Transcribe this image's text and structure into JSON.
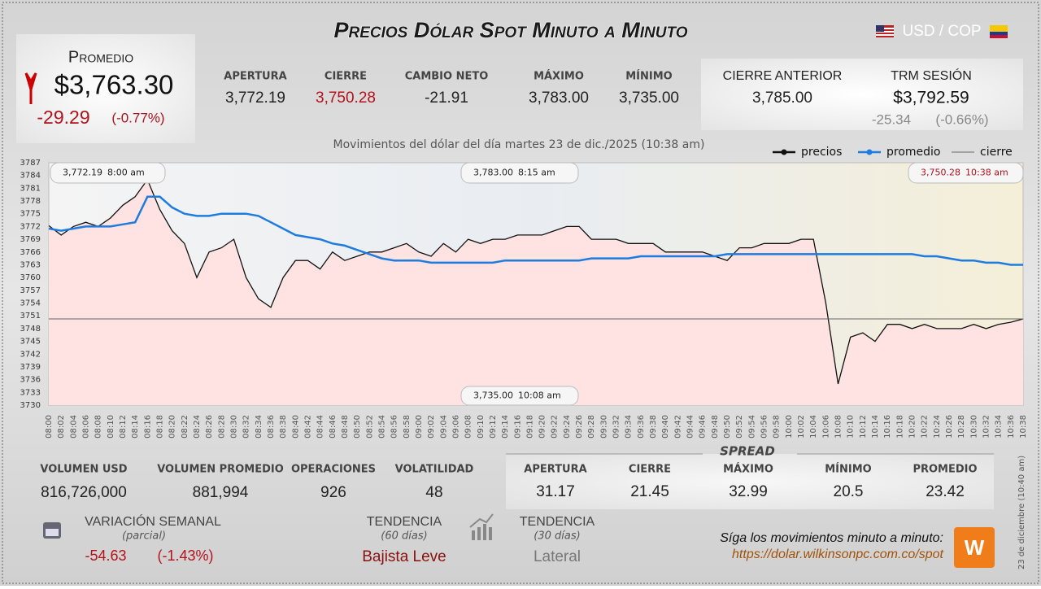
{
  "header": {
    "title": "Precios Dólar Spot Minuto a Minuto",
    "pair": "USD / COP"
  },
  "promedio": {
    "label": "Promedio",
    "value": "$3,763.30",
    "change": "-29.29",
    "percent": "(-0.77%)"
  },
  "stats": [
    {
      "label": "APERTURA",
      "value": "3,772.19"
    },
    {
      "label": "CIERRE",
      "value": "3,750.28"
    },
    {
      "label": "CAMBIO NETO",
      "value": "-21.91"
    },
    {
      "label": "MÁXIMO",
      "value": "3,783.00"
    },
    {
      "label": "MÍNIMO",
      "value": "3,735.00"
    }
  ],
  "previous_close": {
    "label": "CIERRE ANTERIOR",
    "value": "3,785.00"
  },
  "trm": {
    "label": "TRM SESIÓN",
    "value": "$3,792.59",
    "change": "-25.34",
    "percent": "(-0.66%)"
  },
  "chart_data": {
    "type": "line",
    "subtitle": "Movimientos del dólar del día martes 23 de dic./2025 (10:38 am)",
    "categories": [
      "08:00",
      "08:02",
      "08:04",
      "08:06",
      "08:08",
      "08:10",
      "08:12",
      "08:14",
      "08:16",
      "08:18",
      "08:20",
      "08:22",
      "08:24",
      "08:26",
      "08:28",
      "08:30",
      "08:32",
      "08:34",
      "08:36",
      "08:38",
      "08:40",
      "08:42",
      "08:44",
      "08:46",
      "08:48",
      "08:50",
      "08:52",
      "08:54",
      "08:56",
      "08:58",
      "09:00",
      "09:02",
      "09:04",
      "09:06",
      "09:08",
      "09:10",
      "09:12",
      "09:14",
      "09:16",
      "09:18",
      "09:20",
      "09:22",
      "09:24",
      "09:26",
      "09:28",
      "09:30",
      "09:32",
      "09:34",
      "09:36",
      "09:38",
      "09:40",
      "09:42",
      "09:44",
      "09:46",
      "09:48",
      "09:50",
      "09:52",
      "09:54",
      "09:56",
      "09:58",
      "10:00",
      "10:02",
      "10:04",
      "10:06",
      "10:08",
      "10:10",
      "10:12",
      "10:14",
      "10:16",
      "10:18",
      "10:20",
      "10:22",
      "10:24",
      "10:26",
      "10:28",
      "10:30",
      "10:32",
      "10:34",
      "10:36",
      "10:38"
    ],
    "series": [
      {
        "name": "precios",
        "color": "#111111",
        "values": [
          3772.19,
          3770,
          3772,
          3773,
          3772,
          3774,
          3777,
          3779,
          3783,
          3776,
          3771,
          3768,
          3760,
          3766,
          3767,
          3769,
          3760,
          3755,
          3753,
          3760,
          3764,
          3764,
          3762,
          3766,
          3764,
          3765,
          3766,
          3766,
          3767,
          3768,
          3766,
          3765,
          3768,
          3766,
          3769,
          3768,
          3769,
          3769,
          3770,
          3770,
          3770,
          3771,
          3772,
          3772,
          3769,
          3769,
          3769,
          3768,
          3768,
          3768,
          3766,
          3766,
          3766,
          3766,
          3765,
          3764,
          3767,
          3767,
          3768,
          3768,
          3768,
          3769,
          3769,
          3754,
          3735,
          3746,
          3747,
          3745,
          3749,
          3749,
          3748,
          3749,
          3748,
          3748,
          3748,
          3749,
          3748,
          3749,
          3749.5,
          3750.28
        ]
      },
      {
        "name": "promedio",
        "color": "#1e7be0",
        "values": [
          3771.5,
          3771,
          3771.5,
          3772,
          3772,
          3772,
          3772.5,
          3773,
          3779,
          3779,
          3776.5,
          3775,
          3774.5,
          3774.5,
          3775,
          3775,
          3775,
          3774.5,
          3773,
          3771.5,
          3770,
          3769.5,
          3769,
          3768,
          3767.5,
          3766.5,
          3765.5,
          3764.5,
          3764,
          3764,
          3764,
          3763.5,
          3763.5,
          3763.5,
          3763.5,
          3763.5,
          3763.5,
          3764,
          3764,
          3764,
          3764,
          3764,
          3764,
          3764,
          3764.5,
          3764.5,
          3764.5,
          3764.5,
          3765,
          3765,
          3765,
          3765,
          3765,
          3765,
          3765,
          3765.5,
          3765.5,
          3765.5,
          3765.5,
          3765.5,
          3765.5,
          3765.5,
          3765.5,
          3765.5,
          3765.5,
          3765.5,
          3765.5,
          3765.5,
          3765.5,
          3765.5,
          3765.5,
          3765,
          3765,
          3764.5,
          3764,
          3764,
          3763.5,
          3763.5,
          3763,
          3763
        ]
      }
    ],
    "reference": {
      "name": "cierre",
      "color": "#666666",
      "value": 3750.28
    },
    "ylim": [
      3730,
      3787
    ],
    "yticks": [
      3730,
      3733,
      3736,
      3739,
      3742,
      3745,
      3748,
      3751,
      3754,
      3757,
      3760,
      3763,
      3766,
      3769,
      3772,
      3775,
      3778,
      3781,
      3784,
      3787
    ],
    "legend": "top-right",
    "annotations": [
      {
        "value": "3,772.19",
        "time": "8:00 am"
      },
      {
        "value": "3,783.00",
        "time": "8:15 am"
      },
      {
        "value": "3,750.28",
        "time": "10:38 am"
      },
      {
        "value": "3,735.00",
        "time": "10:08 am"
      }
    ]
  },
  "volume": [
    {
      "label": "VOLUMEN USD",
      "value": "816,726,000"
    },
    {
      "label": "VOLUMEN PROMEDIO",
      "value": "881,994"
    },
    {
      "label": "OPERACIONES",
      "value": "926"
    },
    {
      "label": "VOLATILIDAD",
      "value": "48"
    }
  ],
  "spread": {
    "title": "SPREAD",
    "items": [
      {
        "label": "APERTURA",
        "value": "31.17"
      },
      {
        "label": "CIERRE",
        "value": "21.45"
      },
      {
        "label": "MÁXIMO",
        "value": "32.99"
      },
      {
        "label": "MÍNIMO",
        "value": "20.5"
      },
      {
        "label": "PROMEDIO",
        "value": "23.42"
      }
    ]
  },
  "weekly": {
    "label": "VARIACIÓN SEMANAL",
    "note": "(parcial)",
    "change": "-54.63",
    "percent": "(-1.43%)"
  },
  "trends": [
    {
      "label": "TENDENCIA",
      "note": "(60 días)",
      "value": "Bajista Leve"
    },
    {
      "label": "TENDENCIA",
      "note": "(30 días)",
      "value": "Lateral"
    }
  ],
  "footer": {
    "cta": "Síga los movimientos minuto a minuto:",
    "url": "https://dolar.wilkinsonpc.com.co/spot",
    "timestamp": "23 de diciembre (10:40 am)"
  }
}
